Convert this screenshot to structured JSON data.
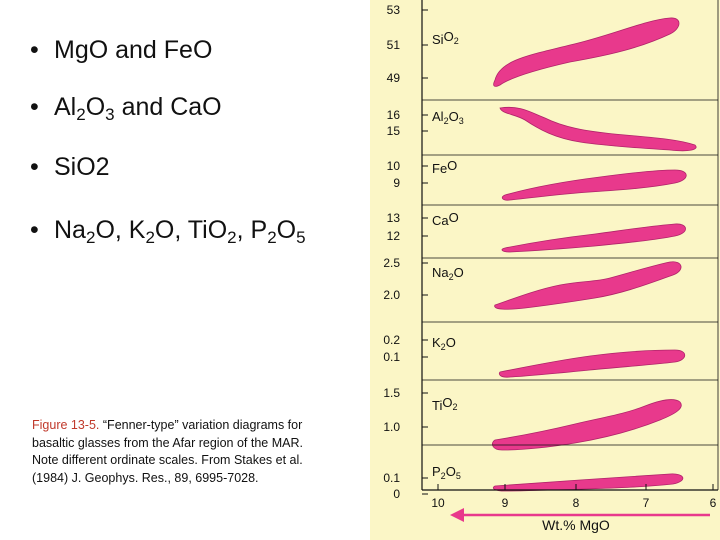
{
  "bullets": [
    {
      "parts": [
        "MgO and FeO"
      ]
    },
    {
      "parts": [
        "Al",
        "2",
        "O",
        "3",
        " and CaO"
      ]
    },
    {
      "parts": [
        "SiO2"
      ]
    },
    {
      "parts": [
        "Na",
        "2",
        "O, K",
        "2",
        "O, TiO",
        "2",
        ", P",
        "2",
        "O",
        "5"
      ]
    }
  ],
  "caption": {
    "figure_label": "Figure 13-5.",
    "title": "“Fenner-type” variation diagrams for basaltic glasses from the Afar region of the MAR.",
    "note": "Note different ordinate scales. From Stakes et al. (1984) J. Geophys. Res., 89, 6995-7028."
  },
  "chart_data": {
    "type": "scatter",
    "xlabel": "Wt.% MgO",
    "x_ticks": [
      "10",
      "9",
      "8",
      "7",
      "6"
    ],
    "x_range": [
      10,
      6
    ],
    "panels": [
      {
        "label": "SiO2",
        "y_ticks": [
          "53",
          "51",
          "49"
        ]
      },
      {
        "label": "Al2O3",
        "y_ticks": [
          "16",
          "15"
        ]
      },
      {
        "label": "FeO",
        "y_ticks": [
          "10",
          "9"
        ]
      },
      {
        "label": "CaO",
        "y_ticks": [
          "13",
          "12"
        ]
      },
      {
        "label": "Na2O",
        "y_ticks": [
          "2.5",
          "2.0"
        ]
      },
      {
        "label": "K2O",
        "y_ticks": [
          "0.2",
          "0.1"
        ]
      },
      {
        "label": "TiO2",
        "y_ticks": [
          "1.5",
          "1.0"
        ]
      },
      {
        "label": "P2O5",
        "y_ticks": [
          "0.1",
          "0"
        ]
      }
    ],
    "colors": {
      "field": "#e8398c",
      "panel_bg": "#fbf6c6",
      "arrow": "#e8398c"
    }
  }
}
